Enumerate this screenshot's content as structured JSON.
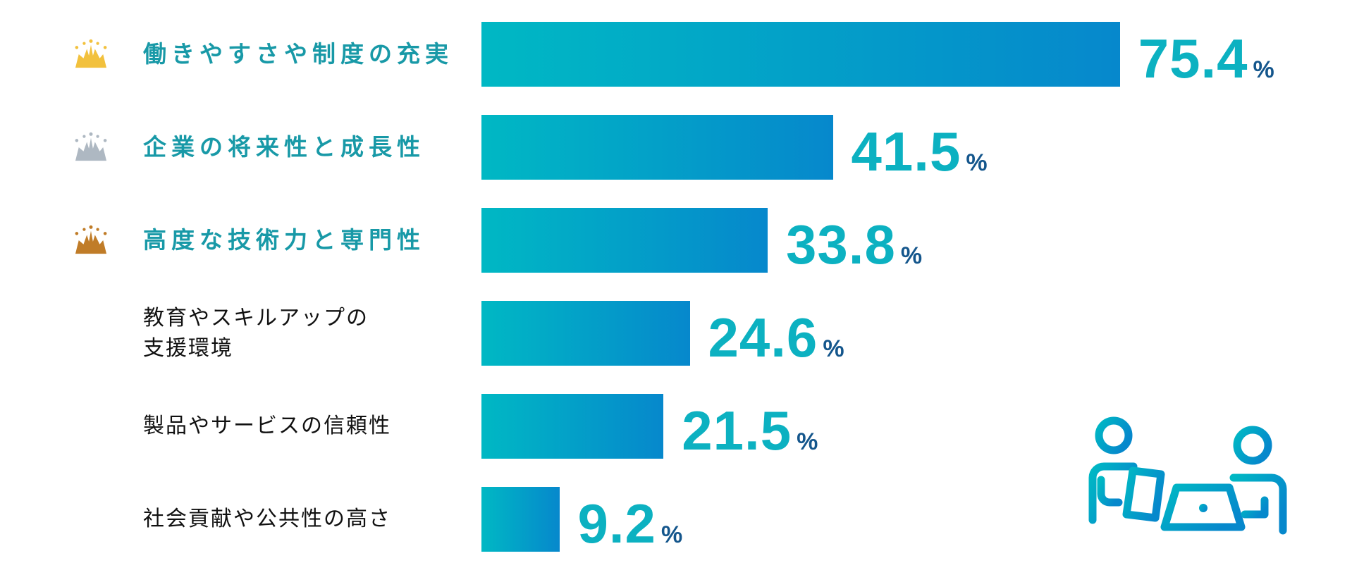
{
  "chart_data": {
    "type": "bar",
    "orientation": "horizontal",
    "title": "",
    "categories": [
      "働きやすさや制度の充実",
      "企業の将来性と成長性",
      "高度な技術力と専門性",
      "教育やスキルアップの\n支援環境",
      "製品やサービスの信頼性",
      "社会貢献や公共性の高さ"
    ],
    "values": [
      75.4,
      41.5,
      33.8,
      24.6,
      21.5,
      9.2
    ],
    "value_labels": [
      "75.4",
      "41.5",
      "33.8",
      "24.6",
      "21.5",
      "9.2"
    ],
    "unit": "%",
    "ranks": [
      "gold",
      "silver",
      "bronze",
      null,
      null,
      null
    ],
    "xlim": [
      0,
      80
    ],
    "grid": false,
    "legend": false
  },
  "colors": {
    "bar_gradient_start": "#00B8C4",
    "bar_gradient_end": "#0688CC",
    "value_number": "#0CB1C1",
    "percent_sign": "#14568C",
    "ranked_label": "#1899A7",
    "plain_label": "#111111",
    "crown_gold": "#F2C13D",
    "crown_silver": "#AEB8C2",
    "crown_bronze": "#C07C28"
  },
  "icons": {
    "rank_icon": "crown-icon",
    "footer_graphic": "two-people-with-laptops-illustration"
  }
}
